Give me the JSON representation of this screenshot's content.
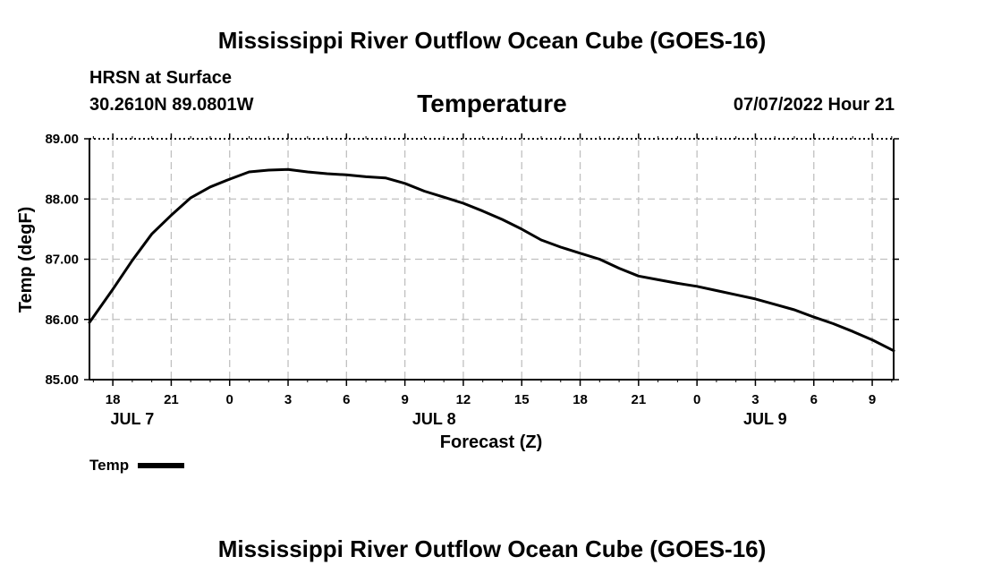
{
  "header": {
    "title": "Mississippi River Outflow Ocean Cube (GOES-16)",
    "station": "HRSN at Surface",
    "coords": "30.2610N  89.0801W",
    "variable": "Temperature",
    "datetime": "07/07/2022 Hour 21"
  },
  "footer": {
    "title": "Mississippi River Outflow Ocean Cube (GOES-16)"
  },
  "legend": {
    "label": "Temp",
    "color": "#000000"
  },
  "chart_data": {
    "type": "line",
    "title": "Temperature",
    "xlabel": "Forecast (Z)",
    "ylabel": "Temp (degF)",
    "ylim": [
      85.0,
      89.0
    ],
    "xlim": [
      16.8,
      58.1
    ],
    "y_ticks": [
      "85.00",
      "86.00",
      "87.00",
      "88.00",
      "89.00"
    ],
    "x_ticks": [
      {
        "x": 18,
        "label": "18"
      },
      {
        "x": 21,
        "label": "21"
      },
      {
        "x": 24,
        "label": "0"
      },
      {
        "x": 27,
        "label": "3"
      },
      {
        "x": 30,
        "label": "6"
      },
      {
        "x": 33,
        "label": "9"
      },
      {
        "x": 36,
        "label": "12"
      },
      {
        "x": 39,
        "label": "15"
      },
      {
        "x": 42,
        "label": "18"
      },
      {
        "x": 45,
        "label": "21"
      },
      {
        "x": 48,
        "label": "0"
      },
      {
        "x": 51,
        "label": "3"
      },
      {
        "x": 54,
        "label": "6"
      },
      {
        "x": 57,
        "label": "9"
      }
    ],
    "day_labels": [
      {
        "x": 19.0,
        "label": "JUL 7"
      },
      {
        "x": 34.5,
        "label": "JUL 8"
      },
      {
        "x": 51.5,
        "label": "JUL 9"
      }
    ],
    "grid": true,
    "series": [
      {
        "name": "Temp",
        "x": [
          16.8,
          18.0,
          19.0,
          20.0,
          21.0,
          22.0,
          23.0,
          24.0,
          25.0,
          26.0,
          27.0,
          28.0,
          29.0,
          30.0,
          31.0,
          32.0,
          33.0,
          34.0,
          35.0,
          36.0,
          37.0,
          38.0,
          39.0,
          40.0,
          41.0,
          42.0,
          43.0,
          44.0,
          45.0,
          46.0,
          47.0,
          48.0,
          49.0,
          50.0,
          51.0,
          52.0,
          53.0,
          54.0,
          55.0,
          56.0,
          57.0,
          58.1
        ],
        "values": [
          85.95,
          86.5,
          86.98,
          87.42,
          87.73,
          88.02,
          88.2,
          88.33,
          88.45,
          88.48,
          88.49,
          88.45,
          88.42,
          88.4,
          88.37,
          88.35,
          88.26,
          88.13,
          88.03,
          87.93,
          87.8,
          87.66,
          87.5,
          87.32,
          87.2,
          87.1,
          87.0,
          86.85,
          86.72,
          86.66,
          86.6,
          86.55,
          86.48,
          86.41,
          86.34,
          86.25,
          86.16,
          86.04,
          85.93,
          85.8,
          85.66,
          85.48
        ]
      }
    ]
  }
}
